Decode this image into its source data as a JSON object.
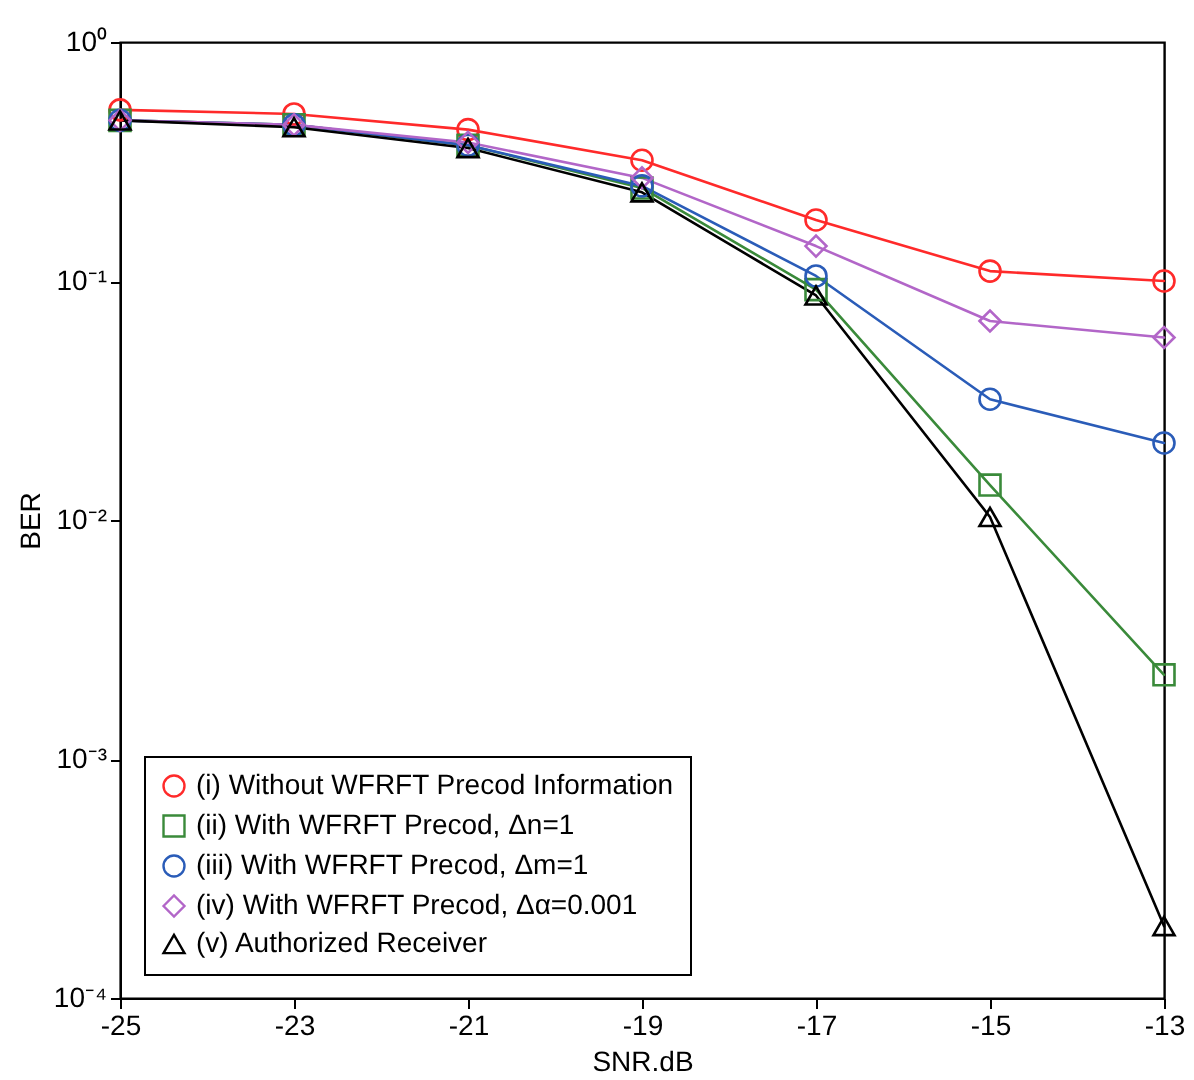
{
  "chart_data": {
    "type": "line",
    "xlabel": "SNR.dB",
    "ylabel": "BER",
    "log": "y",
    "grid": false,
    "legend": "bottom left",
    "x": [
      -25,
      -23,
      -21,
      -19,
      -17,
      -15,
      -13
    ],
    "xlim": [
      -25,
      -13
    ],
    "xticks": [
      -25,
      -23,
      -21,
      -19,
      -17,
      -15,
      -13
    ],
    "ylim": [
      0.0001,
      1
    ],
    "yticks": [
      {
        "value": 1,
        "label": "10⁰"
      },
      {
        "value": 0.1,
        "label": "10⁻¹"
      },
      {
        "value": 0.01,
        "label": "10⁻²"
      },
      {
        "value": 0.001,
        "label": "10⁻³"
      },
      {
        "value": 0.0001,
        "label": "10⁻⁴"
      }
    ],
    "series": [
      {
        "name": "(i) Without WFRFT Precod Information",
        "color": "#ff2a2a",
        "marker": "circle",
        "values": [
          0.52,
          0.5,
          0.43,
          0.32,
          0.18,
          0.11,
          0.1
        ]
      },
      {
        "name": "(ii) With WFRFT Precod, Δn=1",
        "color": "#3a8a3a",
        "marker": "square",
        "values": [
          0.47,
          0.45,
          0.37,
          0.245,
          0.092,
          0.014,
          0.00225
        ]
      },
      {
        "name": "(iii) With WFRFT Precod, Δm=1",
        "color": "#2a5cb8",
        "marker": "circle",
        "values": [
          0.47,
          0.45,
          0.37,
          0.25,
          0.105,
          0.032,
          0.021
        ]
      },
      {
        "name": "(iv) With WFRFT Precod, Δα=0.001",
        "color": "#b266c8",
        "marker": "diamond",
        "values": [
          0.47,
          0.45,
          0.38,
          0.27,
          0.14,
          0.068,
          0.058
        ]
      },
      {
        "name": "(v) Authorized Receiver",
        "color": "#000000",
        "marker": "triangle",
        "values": [
          0.47,
          0.44,
          0.36,
          0.235,
          0.087,
          0.0103,
          0.0002
        ]
      }
    ]
  }
}
